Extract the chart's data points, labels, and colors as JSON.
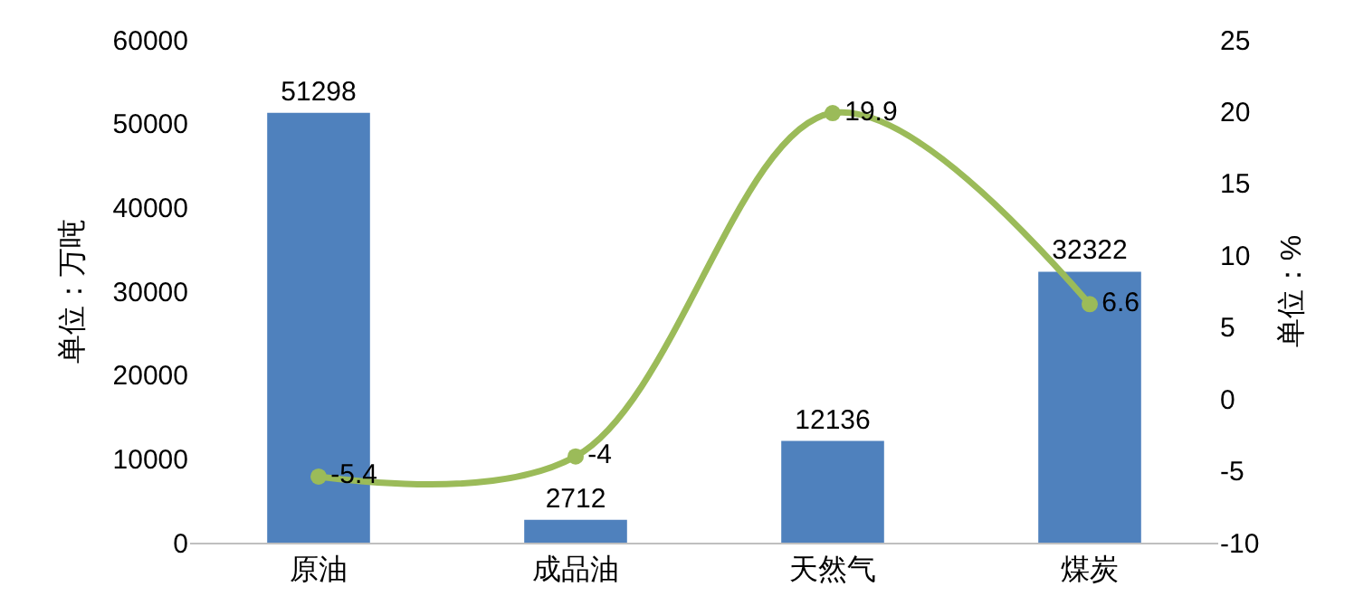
{
  "chart_data": {
    "type": "bar",
    "categories": [
      "原油",
      "成品油",
      "天然气",
      "煤炭"
    ],
    "series": [
      {
        "color": "#4f81bd",
        "values": [
          51298,
          2712,
          12136,
          32322
        ]
      },
      {
        "type": "line",
        "axis": "y2",
        "color": "#9bbb59",
        "values": [
          -5.4,
          -4,
          19.9,
          6.6
        ]
      }
    ],
    "ylabel": "单位：万吨",
    "y2label": "单位：%",
    "ylim": [
      0,
      60000
    ],
    "yticks": [
      0,
      10000,
      20000,
      30000,
      40000,
      50000,
      60000
    ],
    "y2lim": [
      -10,
      25
    ],
    "y2ticks": [
      -10,
      -5,
      0,
      5,
      10,
      15,
      20,
      25
    ],
    "data_labels": true,
    "grid": false,
    "legend": false,
    "marker": "circle",
    "line_style": "solid"
  }
}
